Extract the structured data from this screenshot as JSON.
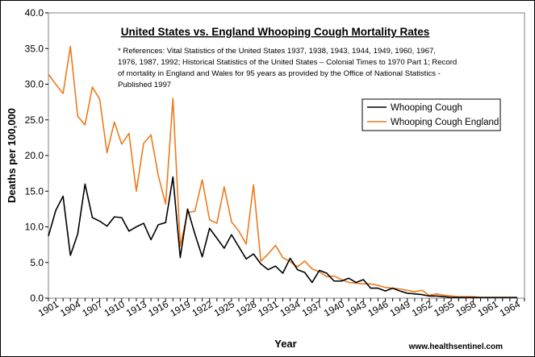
{
  "chart_data": {
    "type": "line",
    "title": "United States vs. England Whooping Cough Mortality Rates",
    "note_lines": [
      "* References: Vital Statistics of the United States 1937, 1938, 1943, 1944, 1949, 1960, 1967,",
      "1976, 1987, 1992; Historical Statistics of the United States – Colonial Times to 1970 Part 1; Record",
      "of mortality in England and Wales for 95 years as provided by the Office of National Statistics -",
      "Published 1997"
    ],
    "xlabel": "Year",
    "ylabel": "Deaths per 100,000",
    "xlim": [
      1901,
      1966
    ],
    "ylim": [
      0,
      40
    ],
    "yticks": [
      0,
      5,
      10,
      15,
      20,
      25,
      30,
      35,
      40
    ],
    "ytick_labels": [
      "0.0",
      "5.0",
      "10.0",
      "15.0",
      "20.0",
      "25.0",
      "30.0",
      "35.0",
      "40.0"
    ],
    "xtick_labels": [
      "1901",
      "1904",
      "1907",
      "1910",
      "1913",
      "1916",
      "1919",
      "1922",
      "1925",
      "1928",
      "1931",
      "1934",
      "1937",
      "1940",
      "1943",
      "1946",
      "1949",
      "1952",
      "1955",
      "1958",
      "1961",
      "1964"
    ],
    "grid": false,
    "legend_position": "right",
    "series": [
      {
        "name": "Whooping Cough",
        "color": "#000000",
        "x": [
          1901,
          1902,
          1903,
          1904,
          1905,
          1906,
          1907,
          1908,
          1909,
          1910,
          1911,
          1912,
          1913,
          1914,
          1915,
          1916,
          1917,
          1918,
          1919,
          1920,
          1921,
          1922,
          1923,
          1924,
          1925,
          1926,
          1927,
          1928,
          1929,
          1930,
          1931,
          1932,
          1933,
          1934,
          1935,
          1936,
          1937,
          1938,
          1939,
          1940,
          1941,
          1942,
          1943,
          1944,
          1945,
          1946,
          1947,
          1948,
          1949,
          1950,
          1951,
          1952,
          1953,
          1954,
          1955,
          1956,
          1957,
          1958,
          1959,
          1960,
          1961,
          1962,
          1963,
          1964,
          1965
        ],
        "y": [
          8.7,
          12.3,
          14.3,
          6.0,
          9.0,
          16.0,
          11.3,
          10.8,
          10.1,
          11.4,
          11.3,
          9.4,
          10.0,
          10.5,
          8.2,
          10.3,
          10.6,
          17.0,
          5.7,
          12.5,
          9.0,
          5.8,
          9.8,
          8.4,
          7.0,
          8.9,
          7.2,
          5.5,
          6.2,
          4.8,
          4.0,
          4.5,
          3.5,
          5.6,
          4.0,
          3.6,
          2.2,
          3.9,
          3.5,
          2.4,
          2.4,
          2.8,
          2.2,
          2.6,
          1.4,
          1.4,
          1.0,
          1.4,
          1.0,
          0.7,
          0.6,
          0.5,
          0.3,
          0.3,
          0.2,
          0.1,
          0.1,
          0.1,
          0.1,
          0.1,
          0.1,
          0.1,
          0.1,
          0.1,
          0.1
        ]
      },
      {
        "name": "Whooping Cough England",
        "color": "#ee7a1c",
        "x": [
          1901,
          1902,
          1903,
          1904,
          1905,
          1906,
          1907,
          1908,
          1909,
          1910,
          1911,
          1912,
          1913,
          1914,
          1915,
          1916,
          1917,
          1918,
          1919,
          1920,
          1921,
          1922,
          1923,
          1924,
          1925,
          1926,
          1927,
          1928,
          1929,
          1930,
          1931,
          1932,
          1933,
          1934,
          1935,
          1936,
          1937,
          1938,
          1939,
          1940,
          1941,
          1942,
          1943,
          1944,
          1945,
          1946,
          1947,
          1948,
          1949,
          1950,
          1951,
          1952,
          1953,
          1954,
          1955,
          1956,
          1957,
          1958,
          1959,
          1960,
          1961,
          1962,
          1963,
          1964,
          1965
        ],
        "y": [
          31.4,
          30.0,
          28.7,
          35.3,
          25.5,
          24.3,
          29.6,
          27.9,
          20.4,
          24.7,
          21.6,
          23.1,
          15.0,
          21.7,
          22.9,
          17.2,
          13.2,
          28.0,
          7.3,
          12.0,
          12.2,
          16.6,
          11.0,
          10.5,
          15.6,
          10.7,
          9.4,
          7.6,
          15.9,
          5.2,
          6.2,
          7.4,
          5.7,
          5.1,
          4.4,
          5.2,
          4.1,
          3.7,
          3.0,
          3.1,
          2.6,
          2.2,
          2.1,
          2.0,
          2.0,
          1.8,
          1.5,
          1.4,
          1.3,
          1.1,
          0.9,
          1.1,
          0.4,
          0.6,
          0.4,
          0.3,
          0.2,
          0.2,
          0.2,
          0.1,
          0.1,
          0.1,
          0.1,
          0.1,
          0.1
        ]
      }
    ]
  },
  "credit": "www.healthsentinel.com"
}
